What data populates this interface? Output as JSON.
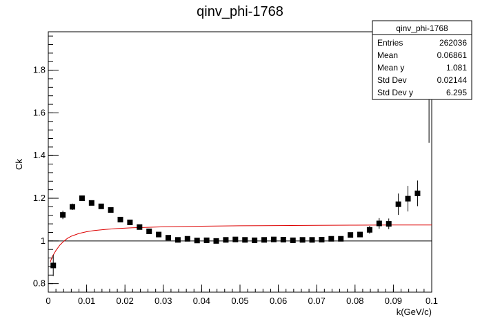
{
  "chart_data": {
    "type": "scatter",
    "title": "qinv_phi-1768",
    "xlabel": "k(GeV/c)",
    "ylabel": "Ck",
    "xlim": [
      0,
      0.1
    ],
    "ylim": [
      0.76,
      1.98
    ],
    "x_ticks": [
      0,
      0.01,
      0.02,
      0.03,
      0.04,
      0.05,
      0.06,
      0.07,
      0.08,
      0.09,
      0.1
    ],
    "x_tick_labels": [
      "0",
      "0.01",
      "0.02",
      "0.03",
      "0.04",
      "0.05",
      "0.06",
      "0.07",
      "0.08",
      "0.09",
      "0.1"
    ],
    "y_ticks": [
      0.8,
      1.0,
      1.2,
      1.4,
      1.6,
      1.8
    ],
    "y_tick_labels": [
      "0.8",
      "1",
      "1.2",
      "1.4",
      "1.6",
      "1.8"
    ],
    "reference_line_y": 1.0,
    "reference_line_color": "#000000",
    "points": [
      {
        "x": 0.0013,
        "y": 0.885,
        "err": 0.05
      },
      {
        "x": 0.0038,
        "y": 1.122,
        "err": 0.02
      },
      {
        "x": 0.0063,
        "y": 1.16,
        "err": 0.015
      },
      {
        "x": 0.0088,
        "y": 1.2,
        "err": 0.012
      },
      {
        "x": 0.0113,
        "y": 1.178,
        "err": 0.01
      },
      {
        "x": 0.0138,
        "y": 1.162,
        "err": 0.008
      },
      {
        "x": 0.0163,
        "y": 1.145,
        "err": 0.008
      },
      {
        "x": 0.0188,
        "y": 1.1,
        "err": 0.007
      },
      {
        "x": 0.0213,
        "y": 1.087,
        "err": 0.007
      },
      {
        "x": 0.0238,
        "y": 1.065,
        "err": 0.006
      },
      {
        "x": 0.0263,
        "y": 1.045,
        "err": 0.006
      },
      {
        "x": 0.0288,
        "y": 1.03,
        "err": 0.006
      },
      {
        "x": 0.0313,
        "y": 1.015,
        "err": 0.006
      },
      {
        "x": 0.0338,
        "y": 1.005,
        "err": 0.006
      },
      {
        "x": 0.0363,
        "y": 1.01,
        "err": 0.006
      },
      {
        "x": 0.0388,
        "y": 1.002,
        "err": 0.006
      },
      {
        "x": 0.0413,
        "y": 1.003,
        "err": 0.006
      },
      {
        "x": 0.0438,
        "y": 1.0,
        "err": 0.006
      },
      {
        "x": 0.0463,
        "y": 1.005,
        "err": 0.006
      },
      {
        "x": 0.0488,
        "y": 1.007,
        "err": 0.006
      },
      {
        "x": 0.0513,
        "y": 1.005,
        "err": 0.006
      },
      {
        "x": 0.0538,
        "y": 1.003,
        "err": 0.006
      },
      {
        "x": 0.0563,
        "y": 1.005,
        "err": 0.006
      },
      {
        "x": 0.0588,
        "y": 1.007,
        "err": 0.006
      },
      {
        "x": 0.0613,
        "y": 1.006,
        "err": 0.006
      },
      {
        "x": 0.0638,
        "y": 1.003,
        "err": 0.006
      },
      {
        "x": 0.0663,
        "y": 1.005,
        "err": 0.006
      },
      {
        "x": 0.0688,
        "y": 1.005,
        "err": 0.006
      },
      {
        "x": 0.0713,
        "y": 1.006,
        "err": 0.006
      },
      {
        "x": 0.0738,
        "y": 1.01,
        "err": 0.007
      },
      {
        "x": 0.0763,
        "y": 1.01,
        "err": 0.008
      },
      {
        "x": 0.0788,
        "y": 1.028,
        "err": 0.009
      },
      {
        "x": 0.0813,
        "y": 1.03,
        "err": 0.012
      },
      {
        "x": 0.0838,
        "y": 1.052,
        "err": 0.018
      },
      {
        "x": 0.0863,
        "y": 1.082,
        "err": 0.025
      },
      {
        "x": 0.0888,
        "y": 1.08,
        "err": 0.025
      },
      {
        "x": 0.0913,
        "y": 1.172,
        "err": 0.05
      },
      {
        "x": 0.0938,
        "y": 1.198,
        "err": 0.06
      },
      {
        "x": 0.0963,
        "y": 1.223,
        "err": 0.06
      }
    ],
    "partial_bin_top_segment": {
      "x": 0.0993,
      "y_low": 1.46,
      "y_high": 1.98
    },
    "fit_curve_color": "#dd0000",
    "fit_curve": [
      {
        "x": 0.0005,
        "y": 0.9
      },
      {
        "x": 0.001,
        "y": 0.925
      },
      {
        "x": 0.002,
        "y": 0.955
      },
      {
        "x": 0.003,
        "y": 0.98
      },
      {
        "x": 0.004,
        "y": 0.998
      },
      {
        "x": 0.005,
        "y": 1.012
      },
      {
        "x": 0.006,
        "y": 1.022
      },
      {
        "x": 0.008,
        "y": 1.035
      },
      {
        "x": 0.01,
        "y": 1.043
      },
      {
        "x": 0.012,
        "y": 1.049
      },
      {
        "x": 0.015,
        "y": 1.054
      },
      {
        "x": 0.018,
        "y": 1.058
      },
      {
        "x": 0.022,
        "y": 1.062
      },
      {
        "x": 0.026,
        "y": 1.064
      },
      {
        "x": 0.03,
        "y": 1.066
      },
      {
        "x": 0.04,
        "y": 1.069
      },
      {
        "x": 0.05,
        "y": 1.071
      },
      {
        "x": 0.06,
        "y": 1.072
      },
      {
        "x": 0.07,
        "y": 1.073
      },
      {
        "x": 0.08,
        "y": 1.074
      },
      {
        "x": 0.09,
        "y": 1.075
      },
      {
        "x": 0.1,
        "y": 1.075
      }
    ],
    "stats_box": {
      "title": "qinv_phi-1768",
      "rows": [
        {
          "label": "Entries",
          "value": "262036"
        },
        {
          "label": "Mean",
          "value": "0.06861"
        },
        {
          "label": "Mean y",
          "value": "1.081"
        },
        {
          "label": "Std Dev",
          "value": "0.02144"
        },
        {
          "label": "Std Dev y",
          "value": "6.295"
        }
      ]
    }
  }
}
